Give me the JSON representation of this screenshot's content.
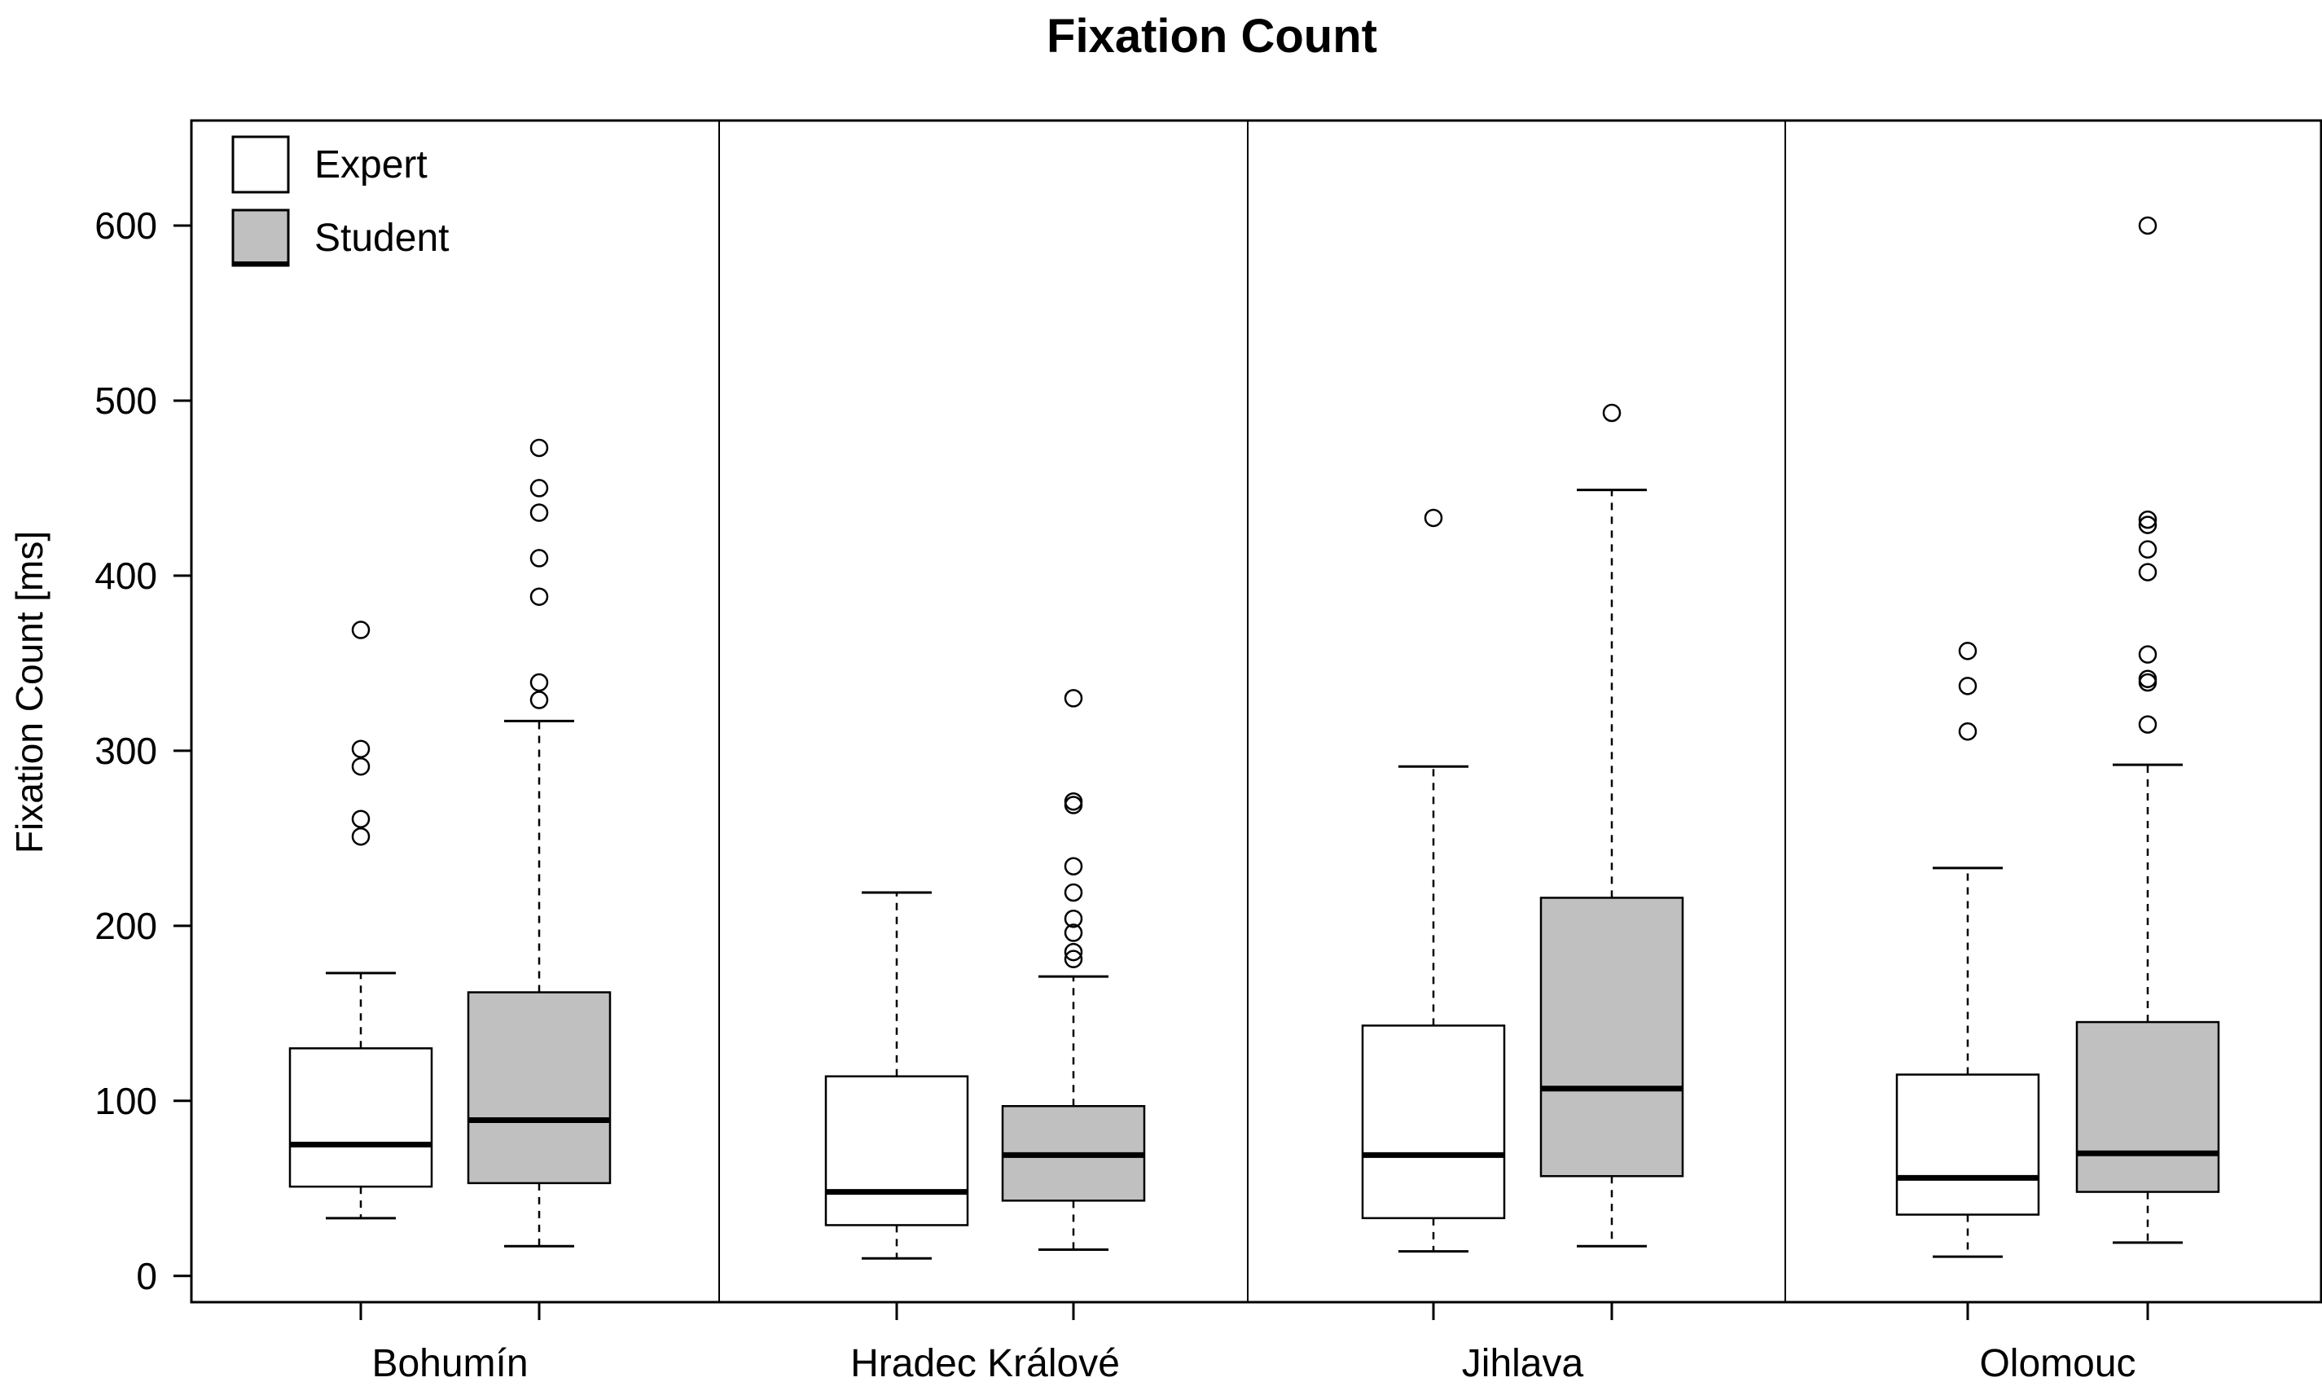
{
  "chart_data": {
    "type": "boxplot",
    "title": "Fixation Count",
    "xlabel": "",
    "ylabel": "Fixation Count [ms]",
    "ylim": [
      -15,
      660
    ],
    "yticks": [
      0,
      100,
      200,
      300,
      400,
      500,
      600
    ],
    "grid": false,
    "legend": {
      "position": "top-left",
      "entries": [
        {
          "label": "Expert",
          "color": "#ffffff"
        },
        {
          "label": "Student",
          "color": "#c0c0c0"
        }
      ]
    },
    "series_colors": {
      "Expert": "#ffffff",
      "Student": "#c0c0c0"
    },
    "categories": [
      "Bohumín",
      "Hradec Králové",
      "Jihlava",
      "Olomouc"
    ],
    "groups": [
      {
        "category": "Bohumín",
        "boxes": [
          {
            "series": "Expert",
            "whisker_low": 33,
            "q1": 51,
            "median": 75,
            "q3": 130,
            "whisker_high": 173,
            "outliers": [
              251,
              261,
              291,
              301,
              369
            ]
          },
          {
            "series": "Student",
            "whisker_low": 17,
            "q1": 53,
            "median": 89,
            "q3": 162,
            "whisker_high": 317,
            "outliers": [
              329,
              339,
              388,
              410,
              436,
              450,
              473
            ]
          }
        ]
      },
      {
        "category": "Hradec Králové",
        "boxes": [
          {
            "series": "Expert",
            "whisker_low": 10,
            "q1": 29,
            "median": 48,
            "q3": 114,
            "whisker_high": 219,
            "outliers": []
          },
          {
            "series": "Student",
            "whisker_low": 15,
            "q1": 43,
            "median": 69,
            "q3": 97,
            "whisker_high": 171,
            "outliers": [
              181,
              185,
              196,
              204,
              219,
              234,
              269,
              271,
              330
            ]
          }
        ]
      },
      {
        "category": "Jihlava",
        "boxes": [
          {
            "series": "Expert",
            "whisker_low": 14,
            "q1": 33,
            "median": 69,
            "q3": 143,
            "whisker_high": 291,
            "outliers": [
              433
            ]
          },
          {
            "series": "Student",
            "whisker_low": 17,
            "q1": 57,
            "median": 107,
            "q3": 216,
            "whisker_high": 449,
            "outliers": [
              493
            ]
          }
        ]
      },
      {
        "category": "Olomouc",
        "boxes": [
          {
            "series": "Expert",
            "whisker_low": 11,
            "q1": 35,
            "median": 56,
            "q3": 115,
            "whisker_high": 233,
            "outliers": [
              311,
              337,
              357
            ]
          },
          {
            "series": "Student",
            "whisker_low": 19,
            "q1": 48,
            "median": 70,
            "q3": 145,
            "whisker_high": 292,
            "outliers": [
              315,
              339,
              341,
              355,
              402,
              415,
              429,
              432,
              600
            ]
          }
        ]
      }
    ]
  }
}
